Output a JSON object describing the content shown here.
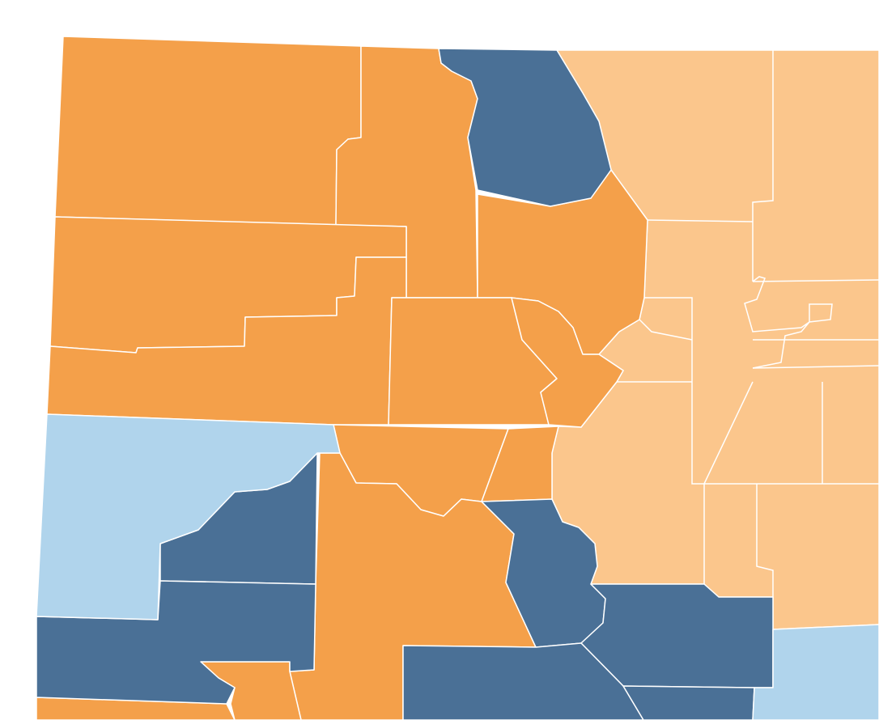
{
  "map": {
    "colors": {
      "dark_orange": "#f4a04a",
      "light_orange": "#fbc68c",
      "dark_blue": "#4a7096",
      "light_blue": "#b0d4ec"
    }
  }
}
